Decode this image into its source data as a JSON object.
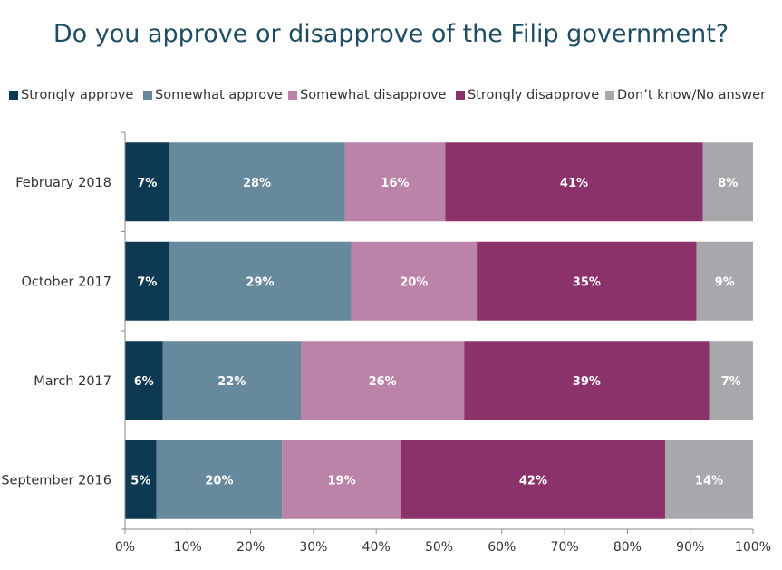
{
  "chart_data": {
    "type": "bar",
    "orientation": "horizontal",
    "stacked": true,
    "title": "Do you approve or disapprove of the Filip government?",
    "categories": [
      "February 2018",
      "October 2017",
      "March 2017",
      "September 2016"
    ],
    "series": [
      {
        "name": "Strongly approve",
        "color": "#0d3a52",
        "values": [
          7,
          7,
          6,
          5
        ],
        "labels": [
          "7%",
          "7%",
          "6%",
          "5%"
        ]
      },
      {
        "name": "Somewhat approve",
        "color": "#66899e",
        "values": [
          28,
          29,
          22,
          20
        ],
        "labels": [
          "28%",
          "29%",
          "22%",
          "20%"
        ]
      },
      {
        "name": "Somewhat disapprove",
        "color": "#bb83a8",
        "values": [
          16,
          20,
          26,
          19
        ],
        "labels": [
          "16%",
          "20%",
          "26%",
          "19%"
        ]
      },
      {
        "name": "Strongly disapprove",
        "color": "#8b326b",
        "values": [
          41,
          35,
          39,
          42
        ],
        "labels": [
          "41%",
          "35%",
          "39%",
          "42%"
        ]
      },
      {
        "name": "Don’t know/No answer",
        "color": "#a8a8ac",
        "values": [
          8,
          9,
          7,
          14
        ],
        "labels": [
          "8%",
          "9%",
          "7%",
          "14%"
        ]
      }
    ],
    "xlim": [
      0,
      100
    ],
    "xticks": [
      "0%",
      "10%",
      "20%",
      "30%",
      "40%",
      "50%",
      "60%",
      "70%",
      "80%",
      "90%",
      "100%"
    ],
    "legend_position": "top",
    "grid": false
  }
}
